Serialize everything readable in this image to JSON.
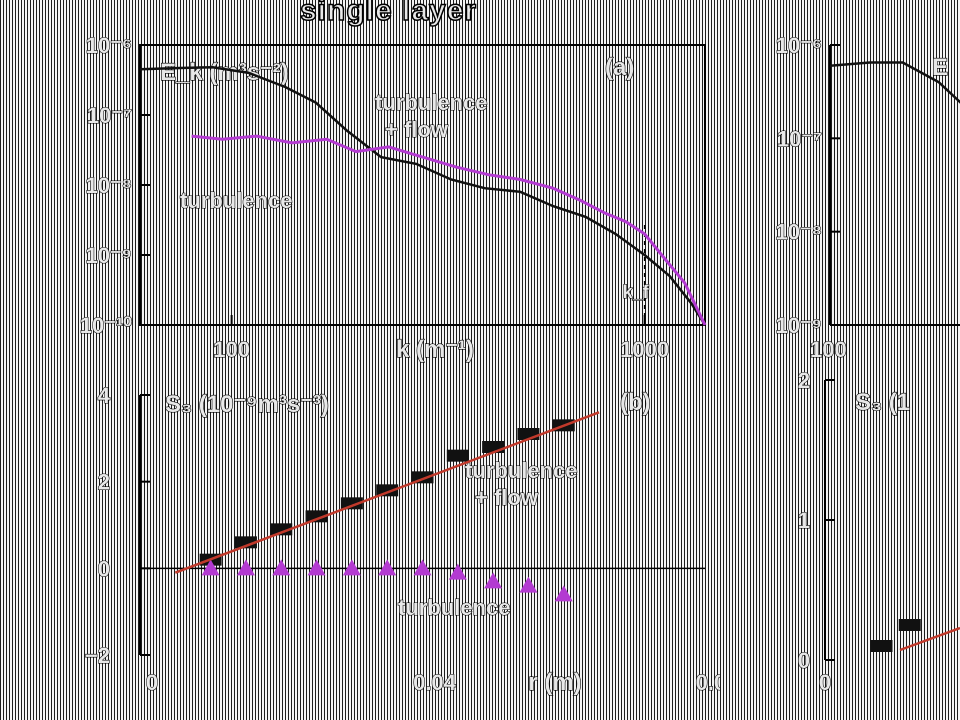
{
  "figure_title": "single layer",
  "chart_data": [
    {
      "type": "line",
      "panel_label": "(a)",
      "ylabel": "E_k (m³s⁻²)",
      "xlabel": "k (m⁻¹)",
      "xscale": "log",
      "yscale": "log",
      "xlim": [
        60,
        1400
      ],
      "ylim": [
        1e-10,
        1e-06
      ],
      "xticks": [
        {
          "value": 100,
          "label": "100"
        },
        {
          "value": 1000,
          "label": "1000"
        }
      ],
      "yticks": [
        {
          "value": 1e-06,
          "label": "10⁻⁶"
        },
        {
          "value": 1e-07,
          "label": "10⁻⁷"
        },
        {
          "value": 1e-08,
          "label": "10⁻⁸"
        },
        {
          "value": 1e-09,
          "label": "10⁻⁹"
        },
        {
          "value": 1e-10,
          "label": "10⁻¹⁰"
        }
      ],
      "marker_line": {
        "value": 1000,
        "label": "k_f"
      },
      "annotations": [
        "turbulence",
        "+ flow",
        "turbulence"
      ],
      "series": [
        {
          "color": "#111111",
          "x": [
            60,
            75,
            90,
            110,
            135,
            160,
            190,
            230,
            280,
            340,
            410,
            500,
            600,
            720,
            850,
            1000,
            1150,
            1300,
            1400
          ],
          "y": [
            4.5e-07,
            4.7e-07,
            4.8e-07,
            4e-07,
            2.5e-07,
            1.5e-07,
            6e-08,
            2.5e-08,
            2e-08,
            1.2e-08,
            9e-09,
            8e-09,
            5e-09,
            3.5e-09,
            2e-09,
            1e-09,
            5e-10,
            2e-10,
            1e-10
          ]
        },
        {
          "color": "#b33bd1",
          "x": [
            80,
            95,
            115,
            140,
            170,
            200,
            240,
            290,
            350,
            420,
            500,
            600,
            700,
            800,
            900,
            1000,
            1100,
            1250,
            1400
          ],
          "y": [
            5e-08,
            4.5e-08,
            5e-08,
            4e-08,
            4.5e-08,
            3e-08,
            3.5e-08,
            2.5e-08,
            1.8e-08,
            1.4e-08,
            1.2e-08,
            9e-09,
            6e-09,
            4e-09,
            3e-09,
            2e-09,
            1e-09,
            4e-10,
            1e-10
          ]
        }
      ]
    },
    {
      "type": "scatter",
      "panel_label": "(b)",
      "ylabel": "S₃ (10⁻⁹m³s⁻³)",
      "xlabel": "r (m)",
      "xlim": [
        0,
        0.08
      ],
      "ylim": [
        -2,
        4
      ],
      "xticks": [
        {
          "value": 0,
          "label": "0"
        },
        {
          "value": 0.04,
          "label": "0.04"
        },
        {
          "value": 0.08,
          "label": "0.08"
        }
      ],
      "yticks": [
        {
          "value": -2,
          "label": "−2"
        },
        {
          "value": 0,
          "label": "0"
        },
        {
          "value": 2,
          "label": "2"
        },
        {
          "value": 4,
          "label": "4"
        }
      ],
      "annotations": [
        "turbulence",
        "+ flow",
        "turbulence"
      ],
      "series": [
        {
          "marker": "square",
          "color": "#111111",
          "x": [
            0.01,
            0.015,
            0.02,
            0.025,
            0.03,
            0.035,
            0.04,
            0.045,
            0.05,
            0.055,
            0.06
          ],
          "y": [
            0.2,
            0.6,
            0.9,
            1.2,
            1.5,
            1.8,
            2.1,
            2.6,
            2.8,
            3.1,
            3.3
          ]
        },
        {
          "marker": "triangle",
          "color": "#b33bd1",
          "x": [
            0.01,
            0.015,
            0.02,
            0.025,
            0.03,
            0.035,
            0.04,
            0.045,
            0.05,
            0.055,
            0.06
          ],
          "y": [
            0.0,
            0.0,
            0.0,
            0.0,
            0.0,
            0.0,
            0.0,
            -0.1,
            -0.3,
            -0.4,
            -0.6
          ]
        },
        {
          "type": "fit",
          "color": "#c0392b",
          "x": [
            0.005,
            0.065
          ],
          "y": [
            -0.1,
            3.6
          ]
        }
      ]
    },
    {
      "type": "line",
      "partial": true,
      "ylabel": "E",
      "xscale": "log",
      "yscale": "log",
      "xlim": [
        60,
        1400
      ],
      "ylim": [
        1e-09,
        1e-06
      ],
      "xticks": [
        {
          "value": 100,
          "label": "100"
        }
      ],
      "yticks": [
        {
          "value": 1e-06,
          "label": "10⁻⁶"
        },
        {
          "value": 1e-07,
          "label": "10⁻⁷"
        },
        {
          "value": 1e-08,
          "label": "10⁻⁸"
        },
        {
          "value": 1e-09,
          "label": "10⁻⁹"
        }
      ],
      "series": [
        {
          "color": "#111111",
          "x": [
            60,
            75,
            90,
            110,
            130,
            150
          ],
          "y": [
            6e-07,
            6.5e-07,
            6.5e-07,
            4e-07,
            2e-07,
            1e-07
          ]
        }
      ]
    },
    {
      "type": "scatter",
      "partial": true,
      "ylabel": "S₃ (1",
      "ylim": [
        0,
        2
      ],
      "xticks": [
        {
          "value": 0,
          "label": "0"
        }
      ],
      "yticks": [
        {
          "value": 0,
          "label": "0"
        },
        {
          "value": 1,
          "label": "1"
        },
        {
          "value": 2,
          "label": "2"
        }
      ],
      "series": [
        {
          "marker": "square",
          "color": "#111111",
          "x": [
            0.008,
            0.012
          ],
          "y": [
            0.1,
            0.25
          ]
        }
      ]
    }
  ]
}
